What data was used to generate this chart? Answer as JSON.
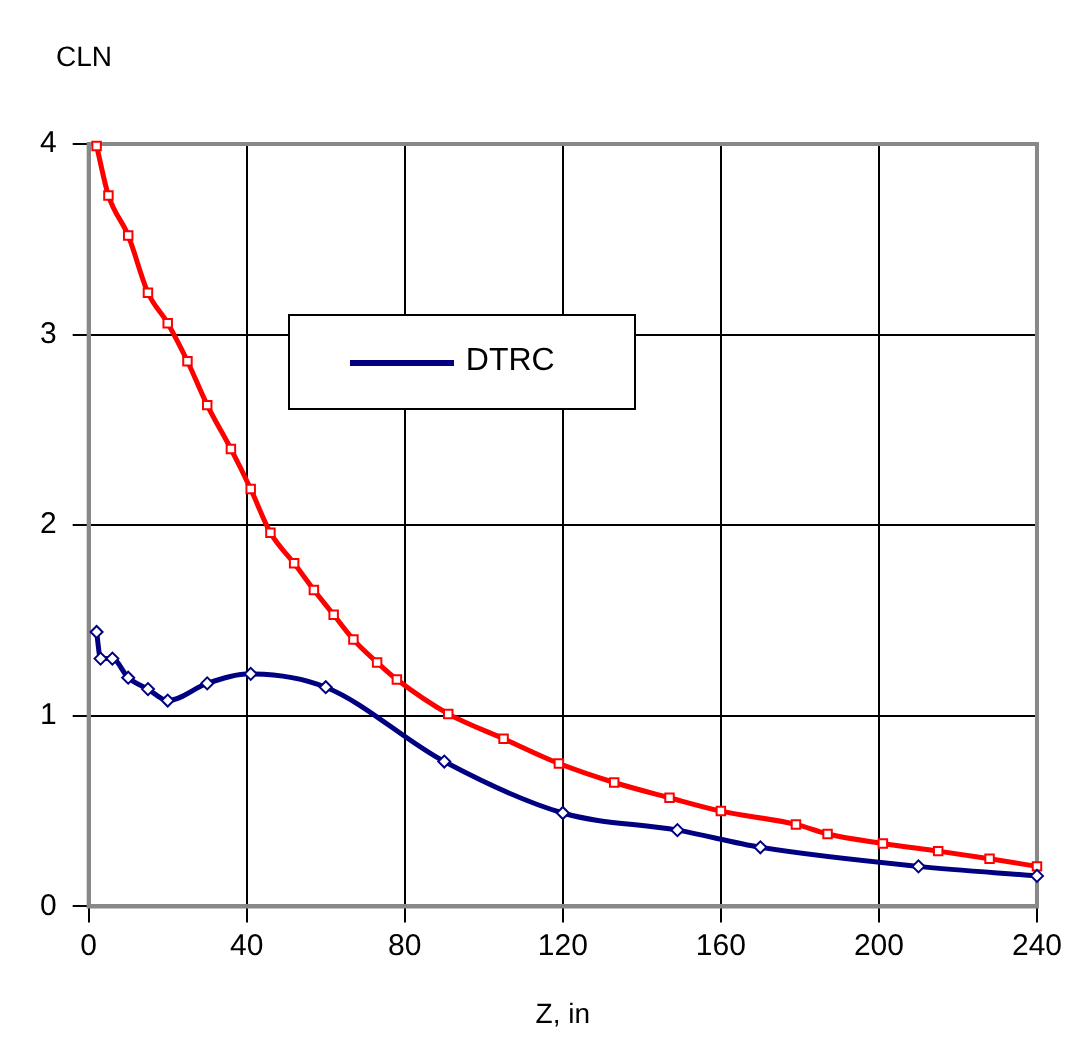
{
  "chart_data": {
    "type": "line",
    "xlabel": "Z, in",
    "ylabel": "CLN",
    "xlim": [
      0,
      240
    ],
    "xticks": [
      0,
      40,
      80,
      120,
      160,
      200,
      240
    ],
    "ylim": [
      0,
      4
    ],
    "yticks": [
      0,
      1,
      2,
      3,
      4
    ],
    "grid": true,
    "legend": "top",
    "line_style": "solid",
    "series": [
      {
        "name": "DTRC",
        "color": "#000080",
        "marker": "diamond",
        "x": [
          2,
          3,
          6,
          10,
          15,
          20,
          30,
          41,
          60,
          90,
          120,
          149,
          170,
          210,
          240
        ],
        "values": [
          1.44,
          1.3,
          1.3,
          1.2,
          1.14,
          1.08,
          1.17,
          1.22,
          1.15,
          0.76,
          0.49,
          0.4,
          0.31,
          0.21,
          0.16
        ]
      },
      {
        "color": "#ff0000",
        "marker": "square",
        "x": [
          2,
          5,
          10,
          15,
          20,
          25,
          30,
          36,
          41,
          46,
          52,
          57,
          62,
          67,
          73,
          78,
          91,
          105,
          119,
          133,
          147,
          160,
          179,
          187,
          201,
          215,
          228,
          240
        ],
        "values": [
          3.99,
          3.73,
          3.52,
          3.22,
          3.06,
          2.86,
          2.63,
          2.4,
          2.19,
          1.96,
          1.8,
          1.66,
          1.53,
          1.4,
          1.28,
          1.19,
          1.01,
          0.88,
          0.75,
          0.65,
          0.57,
          0.5,
          0.43,
          0.38,
          0.33,
          0.29,
          0.25,
          0.21
        ]
      }
    ]
  }
}
